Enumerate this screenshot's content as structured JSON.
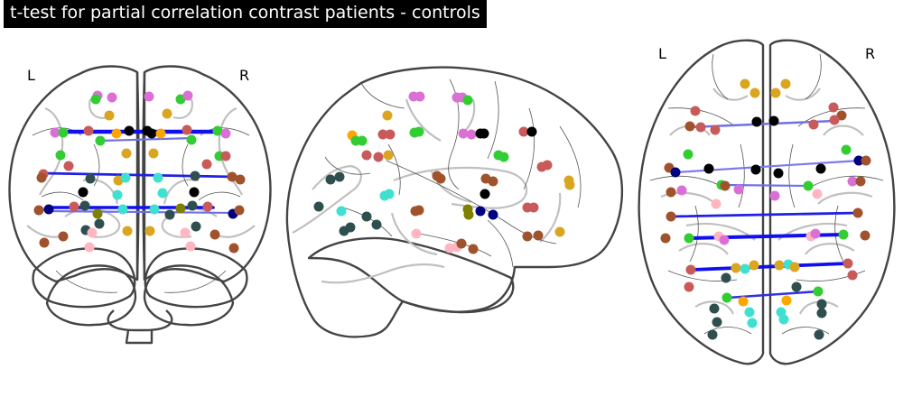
{
  "title": "t-test for partial correlation contrast patients - controls",
  "views": {
    "coronal": {
      "left_label": "L",
      "right_label": "R"
    },
    "axial": {
      "left_label": "L",
      "right_label": "R"
    }
  },
  "colors": {
    "outline": "#444444",
    "sulci": "#c0c0c0",
    "strong_edge": "#1010ee",
    "weak_edge": "#6f6fe8",
    "nodes": [
      "#c85a5a",
      "#da70d6",
      "#32cd32",
      "#daa520",
      "#000000",
      "#2f4f4f",
      "#40e0d0",
      "#a0522d",
      "#000080",
      "#ffb6c1",
      "#ffa500",
      "#808000",
      "#ffffff"
    ]
  }
}
